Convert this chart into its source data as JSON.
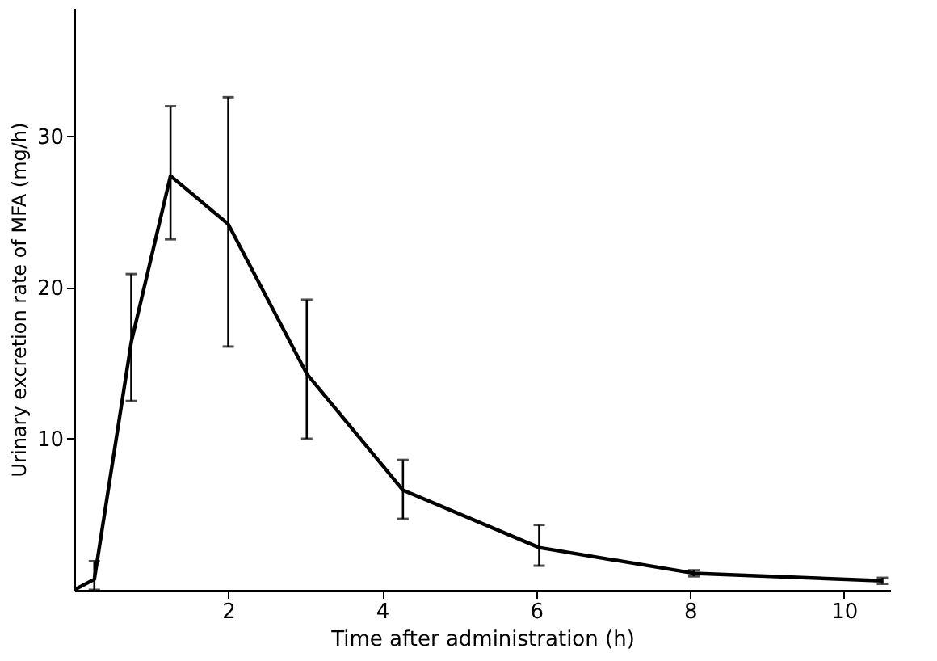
{
  "chart_data": {
    "type": "line",
    "xlabel": "Time after administration (h)",
    "ylabel": "Urinary excretion rate of MFA (mg/h)",
    "x": [
      0,
      0.26,
      0.74,
      1.25,
      2.0,
      3.02,
      4.27,
      6.04,
      8.05,
      10.5
    ],
    "series": [
      {
        "color": "#000000",
        "values": [
          0,
          0.7,
          16.4,
          27.4,
          24.2,
          14.3,
          6.6,
          2.8,
          1.1,
          0.6
        ],
        "errors": [
          null,
          [
            0,
            1.9
          ],
          [
            12.5,
            20.9
          ],
          [
            23.2,
            32.0
          ],
          [
            16.1,
            32.6
          ],
          [
            10.0,
            19.2
          ],
          [
            4.7,
            8.6
          ],
          [
            1.6,
            4.3
          ],
          [
            0.9,
            1.3
          ],
          [
            0.4,
            0.8
          ]
        ]
      }
    ],
    "xlim": [
      0,
      10.6
    ],
    "ylim": [
      0,
      38.5
    ],
    "xticks": [
      2,
      4,
      6,
      8,
      10
    ],
    "yticks": [
      10,
      20,
      30
    ],
    "grid": false,
    "marker": "none",
    "line_style": "solid"
  }
}
